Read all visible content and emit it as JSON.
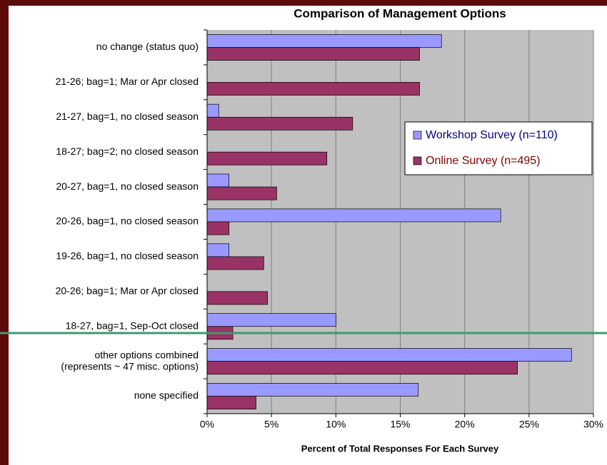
{
  "chart_data": {
    "type": "bar",
    "orientation": "horizontal",
    "title": "Comparison of Management Options",
    "x_label": "Percent of Total Responses For Each Survey",
    "categories": [
      "no change (status quo)",
      "21-26; bag=1; Mar or Apr closed",
      "21-27, bag=1, no closed season",
      "18-27; bag=2; no closed season",
      "20-27, bag=1, no closed season",
      "20-26, bag=1, no closed season",
      "19-26, bag=1, no closed season",
      "20-26; bag=1; Mar or Apr closed",
      "18-27, bag=1, Sep-Oct closed",
      "other options combined\n(represents ~ 47 misc. options)",
      "none specified"
    ],
    "series": [
      {
        "name": "Workshop Survey (n=110)",
        "color": "#9999ff",
        "text_color": "#000080",
        "values": [
          18.2,
          0,
          0.9,
          0,
          1.7,
          22.8,
          1.7,
          0,
          10.0,
          28.3,
          16.4
        ]
      },
      {
        "name": "Online Survey (n=495)",
        "color": "#993366",
        "text_color": "#800000",
        "values": [
          16.5,
          16.5,
          11.3,
          9.3,
          5.4,
          1.7,
          4.4,
          4.7,
          2.0,
          24.1,
          3.8
        ]
      }
    ],
    "xlim": [
      0,
      30
    ],
    "xticks": [
      {
        "value": 0,
        "label": "0%"
      },
      {
        "value": 5,
        "label": "5%"
      },
      {
        "value": 10,
        "label": "10%"
      },
      {
        "value": 15,
        "label": "15%"
      },
      {
        "value": 20,
        "label": "20%"
      },
      {
        "value": 25,
        "label": "25%"
      },
      {
        "value": 30,
        "label": "30%"
      }
    ],
    "grid": true,
    "plot_background": "#c0c0c0",
    "legend_position": "right"
  }
}
